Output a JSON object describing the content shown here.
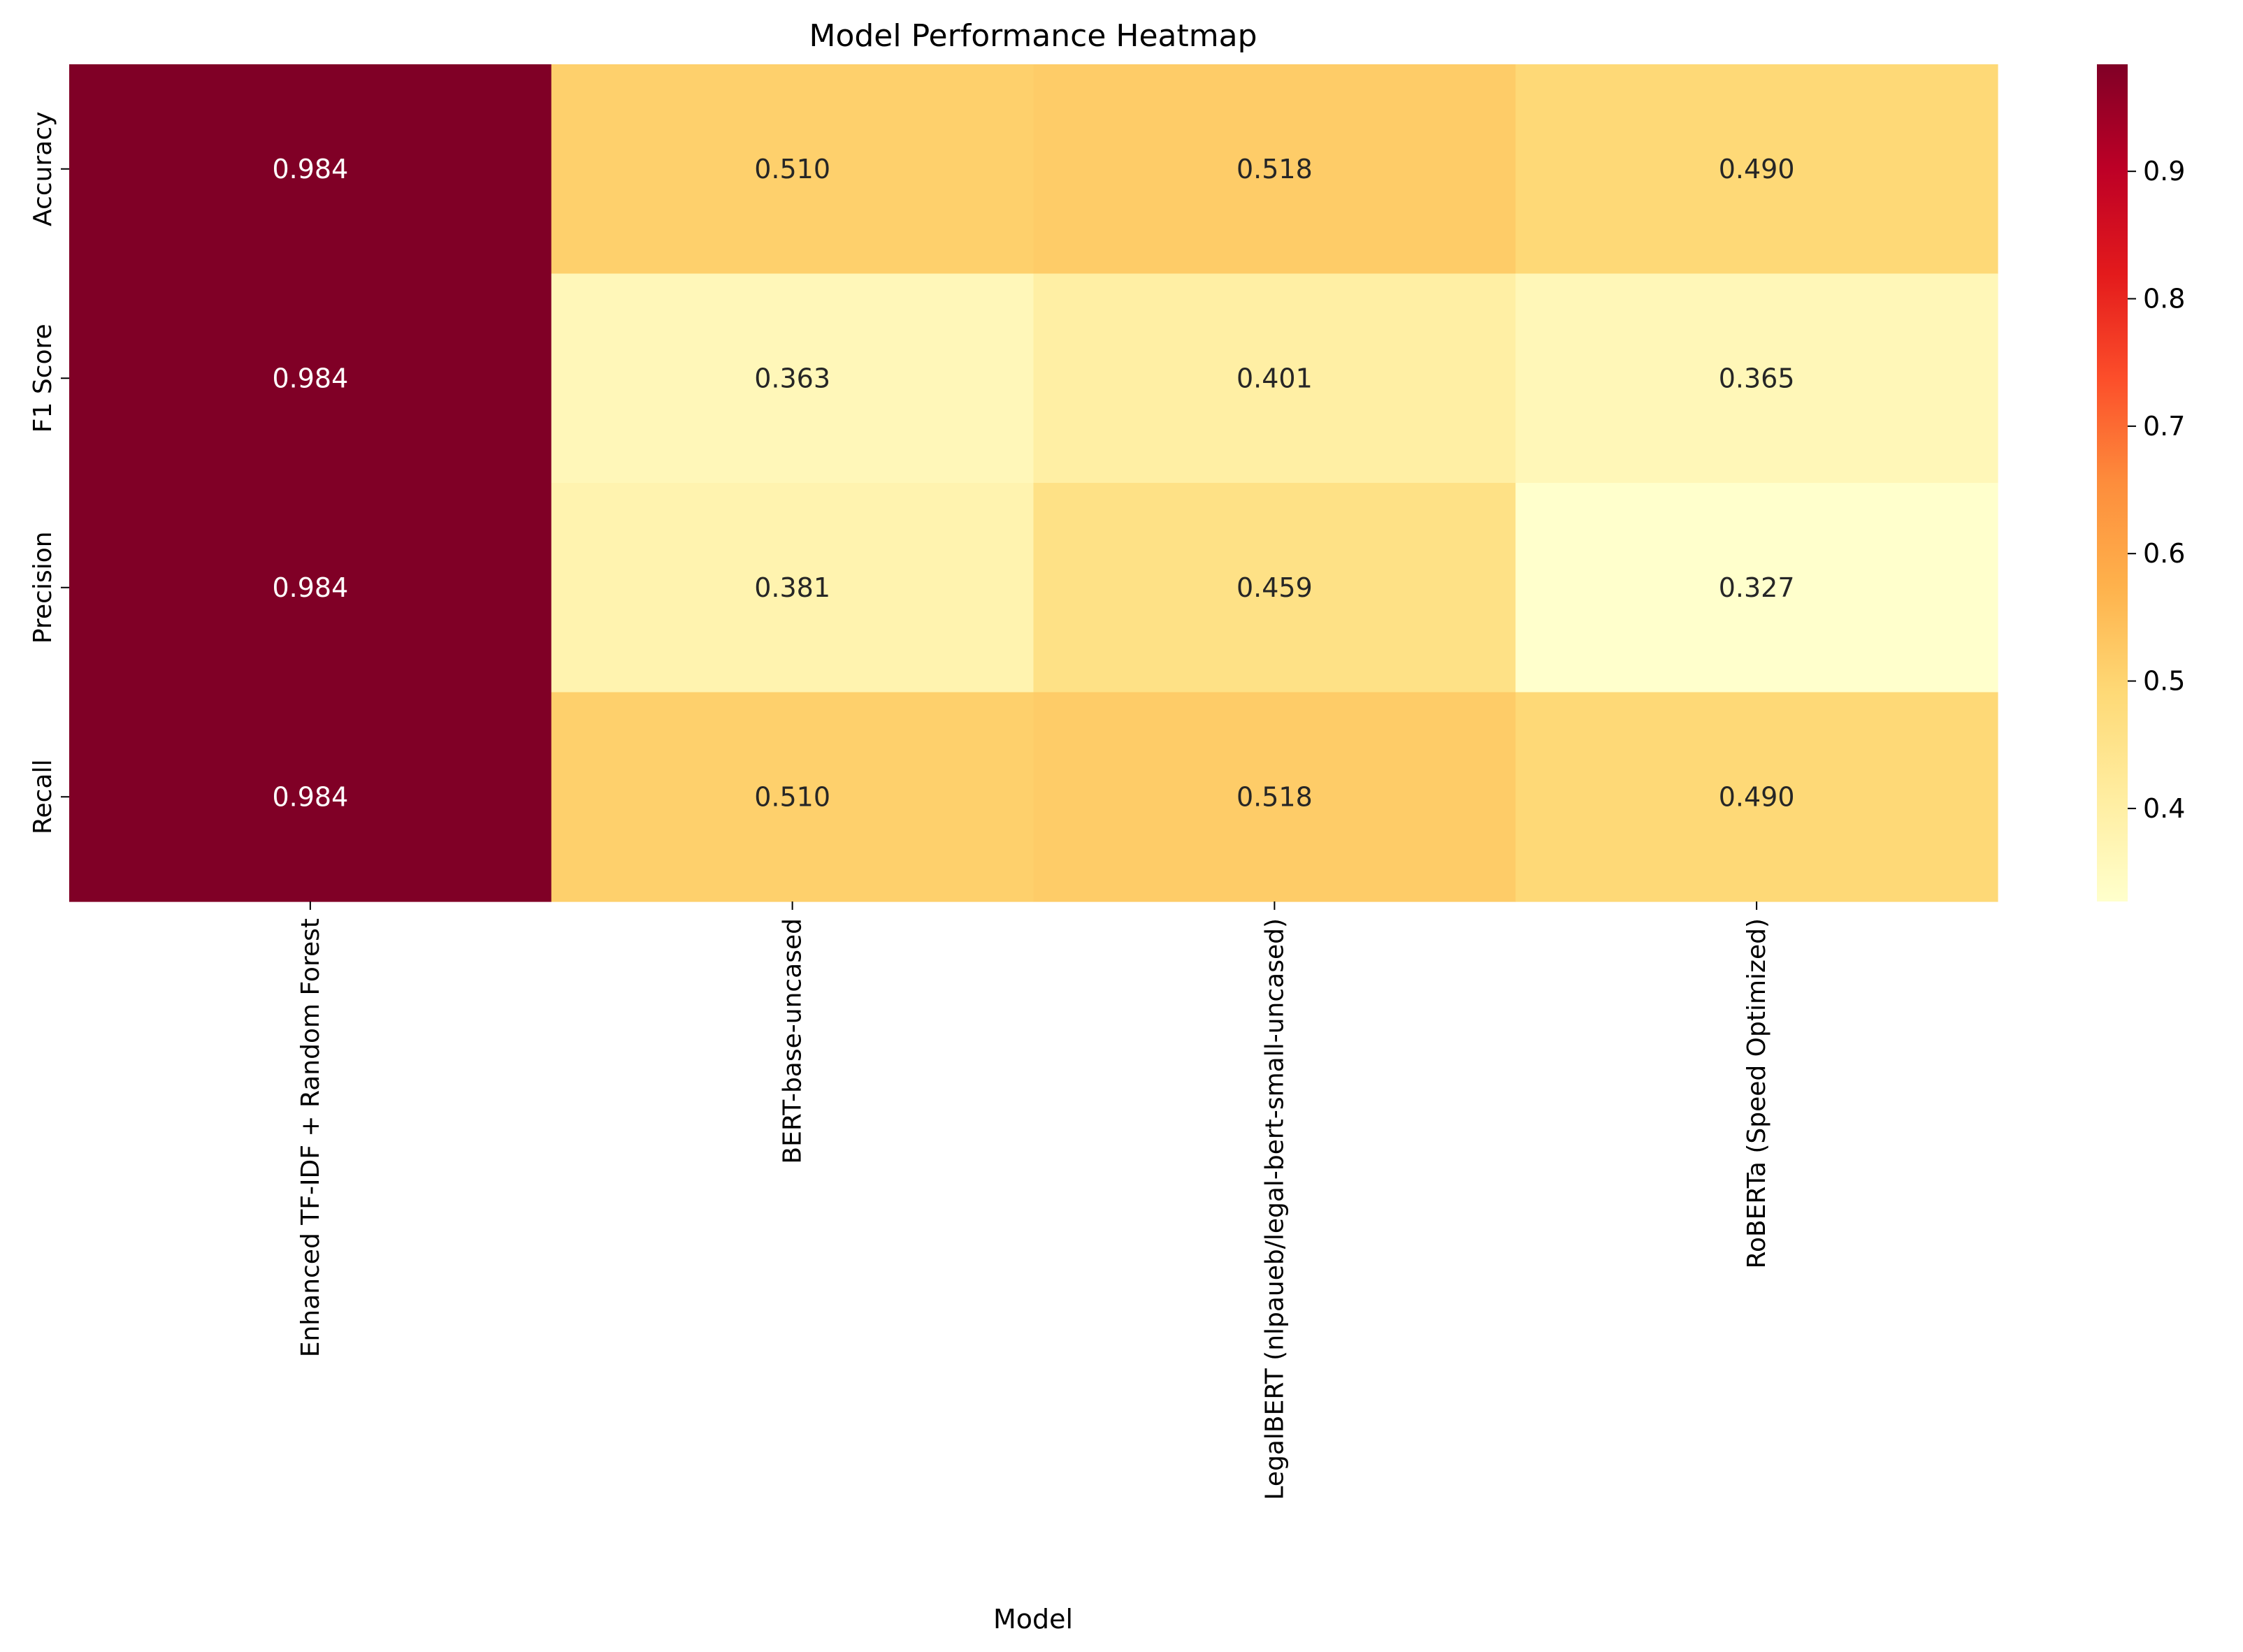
{
  "chart_data": {
    "type": "heatmap",
    "title": "Model Performance Heatmap",
    "xlabel": "Model",
    "ylabel": "",
    "x_categories": [
      "Enhanced TF-IDF + Random Forest",
      "BERT-base-uncased",
      "LegalBERT (nlpaueb/legal-bert-small-uncased)",
      "RoBERTa (Speed Optimized)"
    ],
    "y_categories": [
      "Accuracy",
      "F1 Score",
      "Precision",
      "Recall"
    ],
    "values": [
      [
        0.984,
        0.51,
        0.518,
        0.49
      ],
      [
        0.984,
        0.363,
        0.401,
        0.365
      ],
      [
        0.984,
        0.381,
        0.459,
        0.327
      ],
      [
        0.984,
        0.51,
        0.518,
        0.49
      ]
    ],
    "annotations": [
      [
        "0.984",
        "0.510",
        "0.518",
        "0.490"
      ],
      [
        "0.984",
        "0.363",
        "0.401",
        "0.365"
      ],
      [
        "0.984",
        "0.381",
        "0.459",
        "0.327"
      ],
      [
        "0.984",
        "0.510",
        "0.518",
        "0.490"
      ]
    ],
    "colormap": "YlOrRd",
    "color_range": [
      0.327,
      0.984
    ],
    "colorbar_ticks": [
      0.4,
      0.5,
      0.6,
      0.7,
      0.8,
      0.9
    ],
    "colorbar_tick_labels": [
      "0.4",
      "0.5",
      "0.6",
      "0.7",
      "0.8",
      "0.9"
    ],
    "colorbar_position": "right",
    "grid": false
  }
}
